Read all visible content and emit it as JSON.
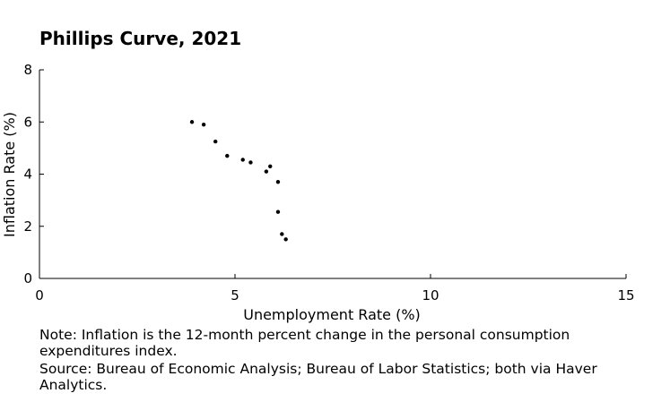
{
  "chart_data": {
    "type": "scatter",
    "title": "Phillips Curve, 2021",
    "xlabel": "Unemployment Rate (%)",
    "ylabel": "Inflation Rate (%)",
    "xlim": [
      0,
      15
    ],
    "ylim": [
      0,
      8
    ],
    "x_ticks": [
      "0",
      "5",
      "10",
      "15"
    ],
    "y_ticks": [
      "0",
      "2",
      "4",
      "6",
      "8"
    ],
    "grid": false,
    "legend": "none",
    "marker_color": "#000000",
    "series": [
      {
        "points": [
          {
            "x": 3.9,
            "y": 6.0
          },
          {
            "x": 4.2,
            "y": 5.9
          },
          {
            "x": 4.5,
            "y": 5.25
          },
          {
            "x": 4.8,
            "y": 4.7
          },
          {
            "x": 5.2,
            "y": 4.55
          },
          {
            "x": 5.4,
            "y": 4.45
          },
          {
            "x": 5.8,
            "y": 4.1
          },
          {
            "x": 5.9,
            "y": 4.3
          },
          {
            "x": 6.1,
            "y": 3.7
          },
          {
            "x": 6.1,
            "y": 2.55
          },
          {
            "x": 6.2,
            "y": 1.7
          },
          {
            "x": 6.3,
            "y": 1.5
          }
        ]
      }
    ]
  },
  "notes": {
    "note": " Note:  Inflation is the 12-month percent change in the personal consumption expenditures index.",
    "source": " Source:  Bureau of Economic Analysis; Bureau of Labor Statistics; both via Haver Analytics."
  }
}
